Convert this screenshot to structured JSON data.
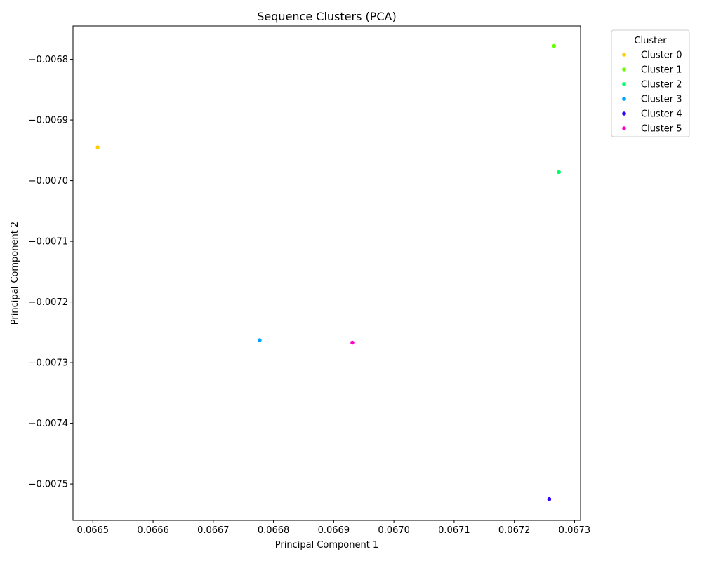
{
  "chart_data": {
    "type": "scatter",
    "title": "Sequence Clusters (PCA)",
    "xlabel": "Principal Component 1",
    "ylabel": "Principal Component 2",
    "xlim": [
      0.066467,
      0.06731
    ],
    "ylim": [
      -0.00756,
      -0.006745
    ],
    "xticks": [
      0.0665,
      0.0666,
      0.0667,
      0.0668,
      0.0669,
      0.067,
      0.0671,
      0.0672,
      0.0673
    ],
    "xtick_labels": [
      "0.0665",
      "0.0666",
      "0.0667",
      "0.0668",
      "0.0669",
      "0.0670",
      "0.0671",
      "0.0672",
      "0.0673"
    ],
    "yticks": [
      -0.0068,
      -0.0069,
      -0.007,
      -0.0071,
      -0.0072,
      -0.0073,
      -0.0074,
      -0.0075
    ],
    "ytick_labels": [
      "−0.0068",
      "−0.0069",
      "−0.0070",
      "−0.0071",
      "−0.0072",
      "−0.0073",
      "−0.0074",
      "−0.0075"
    ],
    "grid": false,
    "legend_title": "Cluster",
    "legend_position": "outside-top-right",
    "series": [
      {
        "name": "Cluster 0",
        "color": "#ffcc00",
        "x": [
          0.066508
        ],
        "y": [
          -0.006945
        ]
      },
      {
        "name": "Cluster 1",
        "color": "#66ff00",
        "x": [
          0.067266
        ],
        "y": [
          -0.006778
        ]
      },
      {
        "name": "Cluster 2",
        "color": "#00ff66",
        "x": [
          0.067274
        ],
        "y": [
          -0.006986
        ]
      },
      {
        "name": "Cluster 3",
        "color": "#00a3ff",
        "x": [
          0.066777
        ],
        "y": [
          -0.007263
        ]
      },
      {
        "name": "Cluster 4",
        "color": "#3300ff",
        "x": [
          0.067258
        ],
        "y": [
          -0.007525
        ]
      },
      {
        "name": "Cluster 5",
        "color": "#ff00cc",
        "x": [
          0.066931
        ],
        "y": [
          -0.007267
        ]
      }
    ]
  }
}
